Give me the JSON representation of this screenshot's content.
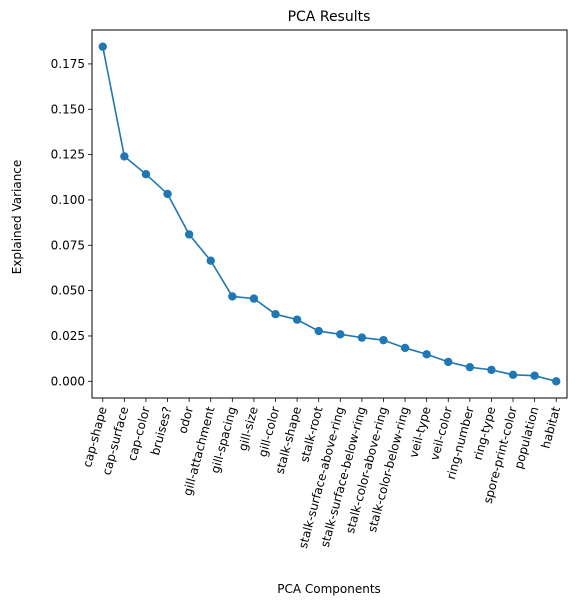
{
  "chart_data": {
    "type": "line",
    "title": "PCA Results",
    "xlabel": "PCA Components",
    "ylabel": "Explained Variance",
    "categories": [
      "cap-shape",
      "cap-surface",
      "cap-color",
      "bruises?",
      "odor",
      "gill-attachment",
      "gill-spacing",
      "gill-size",
      "gill-color",
      "stalk-shape",
      "stalk-root",
      "stalk-surface-above-ring",
      "stalk-surface-below-ring",
      "stalk-color-above-ring",
      "stalk-color-below-ring",
      "veil-type",
      "veil-color",
      "ring-number",
      "ring-type",
      "spore-print-color",
      "population",
      "habitat"
    ],
    "series": [
      {
        "values": [
          0.1845,
          0.124,
          0.1142,
          0.1033,
          0.081,
          0.0665,
          0.0468,
          0.0456,
          0.037,
          0.034,
          0.0277,
          0.0259,
          0.0241,
          0.0227,
          0.0184,
          0.0149,
          0.0107,
          0.0078,
          0.0063,
          0.0036,
          0.0031,
          0.0
        ],
        "color": "#1f77b4"
      }
    ],
    "ylim": [
      -0.0092,
      0.1937
    ],
    "yticks": [
      0.0,
      0.025,
      0.05,
      0.075,
      0.1,
      0.125,
      0.15,
      0.175
    ],
    "ytick_labels": [
      "0.000",
      "0.025",
      "0.050",
      "0.075",
      "0.100",
      "0.125",
      "0.150",
      "0.175"
    ],
    "grid": false,
    "legend": "none"
  }
}
